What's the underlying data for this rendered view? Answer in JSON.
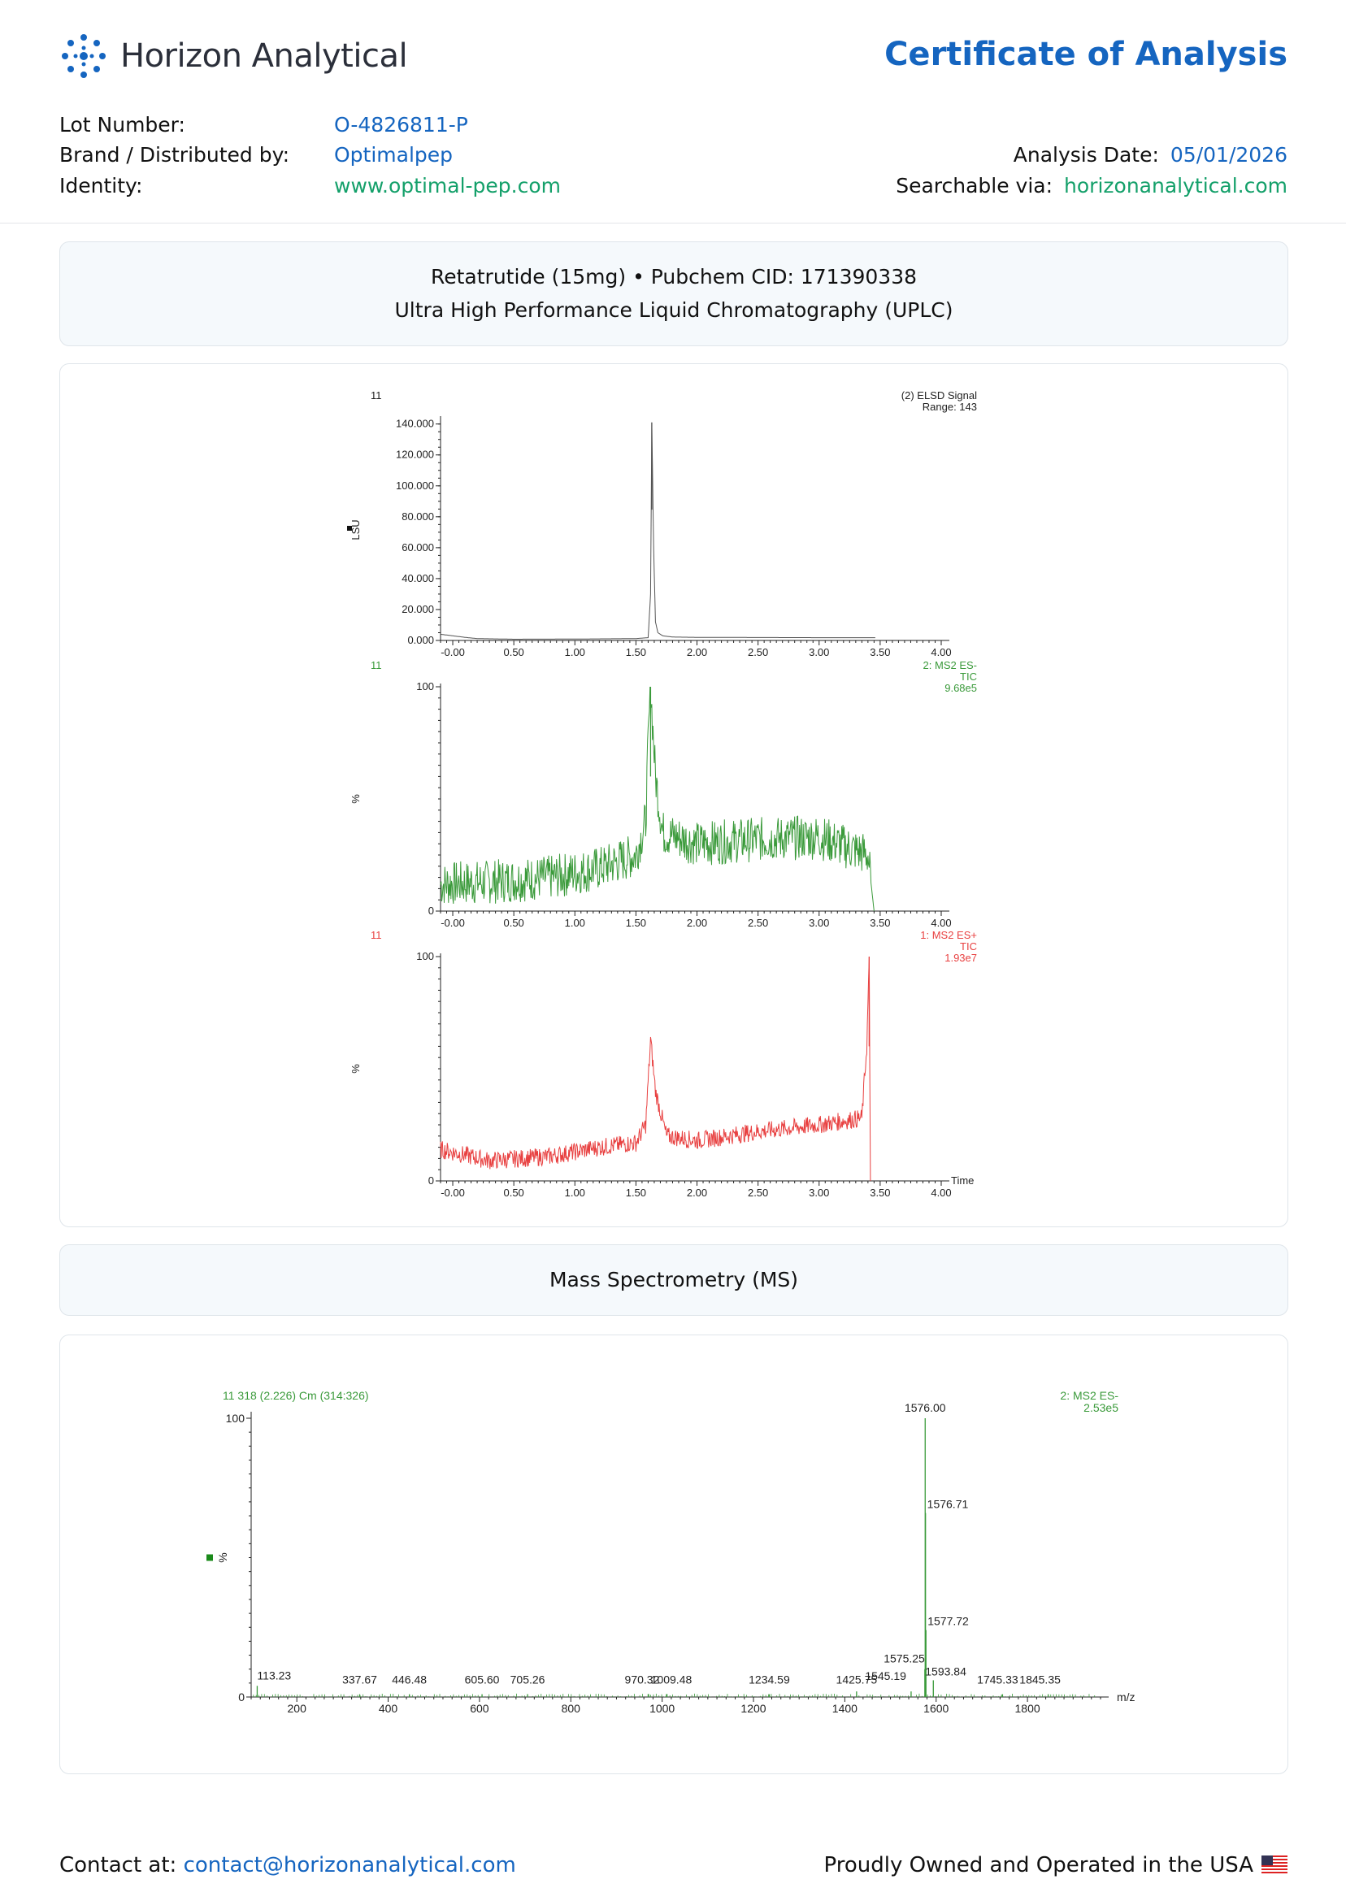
{
  "header": {
    "company": "Horizon Analytical",
    "title": "Certificate of Analysis"
  },
  "info": {
    "lot_label": "Lot Number:",
    "lot_value": "O-4826811-P",
    "brand_label": "Brand / Distributed by:",
    "brand_value": "Optimalpep",
    "identity_label": "Identity:",
    "identity_value": "www.optimal-pep.com",
    "date_label": "Analysis Date:",
    "date_value": "05/01/2026",
    "search_label": "Searchable via:",
    "search_value": "horizonanalytical.com"
  },
  "uplc_section": {
    "line1": "Retatrutide (15mg) • Pubchem CID: 171390338",
    "line2": "Ultra High Performance Liquid Chromatography (UPLC)"
  },
  "ms_section": {
    "title": "Mass Spectrometry (MS)"
  },
  "footer": {
    "contact_label": "Contact at:",
    "contact_email": "contact@horizonanalytical.com",
    "owned": "Proudly Owned and Operated in the USA"
  },
  "chart_data": [
    {
      "type": "line",
      "id": "elsd",
      "sample": "11",
      "legend": [
        "(2) ELSD Signal",
        "Range: 143"
      ],
      "ylabel": "LSU",
      "color": "#555555",
      "xlim": [
        -0.1,
        4.0
      ],
      "ylim": [
        0,
        143
      ],
      "xticks": [
        "-0.00",
        "0.50",
        "1.00",
        "1.50",
        "2.00",
        "2.50",
        "3.00",
        "3.50",
        "4.00"
      ],
      "yticks": [
        "0.000",
        "20.000",
        "40.000",
        "60.000",
        "80.000",
        "100.000",
        "120.000",
        "140.000"
      ],
      "peak": {
        "x": 1.63,
        "y": 141
      },
      "x": [
        -0.1,
        0.0,
        0.1,
        0.2,
        0.5,
        1.0,
        1.5,
        1.6,
        1.62,
        1.63,
        1.645,
        1.66,
        1.68,
        1.72,
        1.8,
        2.0,
        3.0,
        3.46
      ],
      "y": [
        4.0,
        3.0,
        2.0,
        1.2,
        0.8,
        0.9,
        1.2,
        1.8,
        30,
        141,
        60,
        12,
        5,
        3,
        2.2,
        2.0,
        1.8,
        1.8
      ]
    },
    {
      "type": "line",
      "id": "ms2-es-minus",
      "sample": "11",
      "legend": [
        "2: MS2 ES-",
        "TIC",
        "9.68e5"
      ],
      "ylabel": "%",
      "color": "#3a9a3a",
      "xlim": [
        -0.1,
        4.0
      ],
      "ylim": [
        0,
        100
      ],
      "xticks": [
        "-0.00",
        "0.50",
        "1.00",
        "1.50",
        "2.00",
        "2.50",
        "3.00",
        "3.50",
        "4.00"
      ],
      "yticks": [
        "0",
        "100"
      ],
      "peak": {
        "x": 1.62,
        "y": 100
      },
      "x": [
        -0.1,
        0.3,
        0.8,
        1.2,
        1.5,
        1.58,
        1.6,
        1.62,
        1.66,
        1.72,
        2.0,
        2.5,
        3.0,
        3.4,
        3.45
      ],
      "y": [
        12,
        13,
        15,
        19,
        25,
        40,
        75,
        100,
        60,
        35,
        30,
        32,
        33,
        25,
        0
      ]
    },
    {
      "type": "line",
      "id": "ms2-es-plus",
      "sample": "11",
      "legend": [
        "1: MS2 ES+",
        "TIC",
        "1.93e7"
      ],
      "ylabel": "%",
      "xlabel": "Time",
      "color": "#e84040",
      "xlim": [
        -0.1,
        4.0
      ],
      "ylim": [
        0,
        100
      ],
      "xticks": [
        "-0.00",
        "0.50",
        "1.00",
        "1.50",
        "2.00",
        "2.50",
        "3.00",
        "3.50",
        "4.00"
      ],
      "yticks": [
        "0",
        "100"
      ],
      "peak": {
        "x": 3.41,
        "y": 100
      },
      "x": [
        -0.1,
        0.3,
        0.8,
        1.2,
        1.5,
        1.58,
        1.62,
        1.66,
        1.75,
        2.0,
        2.5,
        3.0,
        3.35,
        3.39,
        3.41,
        3.42
      ],
      "y": [
        14,
        9,
        11,
        15,
        17,
        25,
        63,
        40,
        20,
        18,
        22,
        25,
        28,
        60,
        100,
        0
      ]
    },
    {
      "type": "bar",
      "id": "ms-spectrum",
      "header_left": "11 318 (2.226) Cm (314:326)",
      "legend": [
        "2: MS2 ES-",
        "2.53e5"
      ],
      "ylabel": "%",
      "xlabel": "m/z",
      "color": "#3a9a3a",
      "xlim": [
        100,
        1960
      ],
      "ylim": [
        0,
        100
      ],
      "xticks": [
        "200",
        "400",
        "600",
        "800",
        "1000",
        "1200",
        "1400",
        "1600",
        "1800"
      ],
      "yticks": [
        "0",
        "100"
      ],
      "peaks": [
        {
          "mz": 113.23,
          "intensity": 4
        },
        {
          "mz": 337.67,
          "intensity": 1
        },
        {
          "mz": 446.48,
          "intensity": 1
        },
        {
          "mz": 605.6,
          "intensity": 1
        },
        {
          "mz": 705.26,
          "intensity": 1
        },
        {
          "mz": 970.32,
          "intensity": 1
        },
        {
          "mz": 1009.48,
          "intensity": 1
        },
        {
          "mz": 1234.59,
          "intensity": 1
        },
        {
          "mz": 1425.75,
          "intensity": 2
        },
        {
          "mz": 1545.19,
          "intensity": 2
        },
        {
          "mz": 1575.25,
          "intensity": 10
        },
        {
          "mz": 1576.0,
          "intensity": 100
        },
        {
          "mz": 1576.71,
          "intensity": 66
        },
        {
          "mz": 1577.72,
          "intensity": 24
        },
        {
          "mz": 1593.84,
          "intensity": 6
        },
        {
          "mz": 1745.33,
          "intensity": 1
        },
        {
          "mz": 1845.35,
          "intensity": 1
        }
      ],
      "labels": [
        "113.23",
        "337.67",
        "446.48",
        "605.60",
        "705.26",
        "970.32",
        "1009.48",
        "1234.59",
        "1425.75",
        "1545.19",
        "1575.25",
        "1576.00",
        "1576.71",
        "1577.72",
        "1593.84",
        "1745.33",
        "1845.35"
      ]
    }
  ]
}
